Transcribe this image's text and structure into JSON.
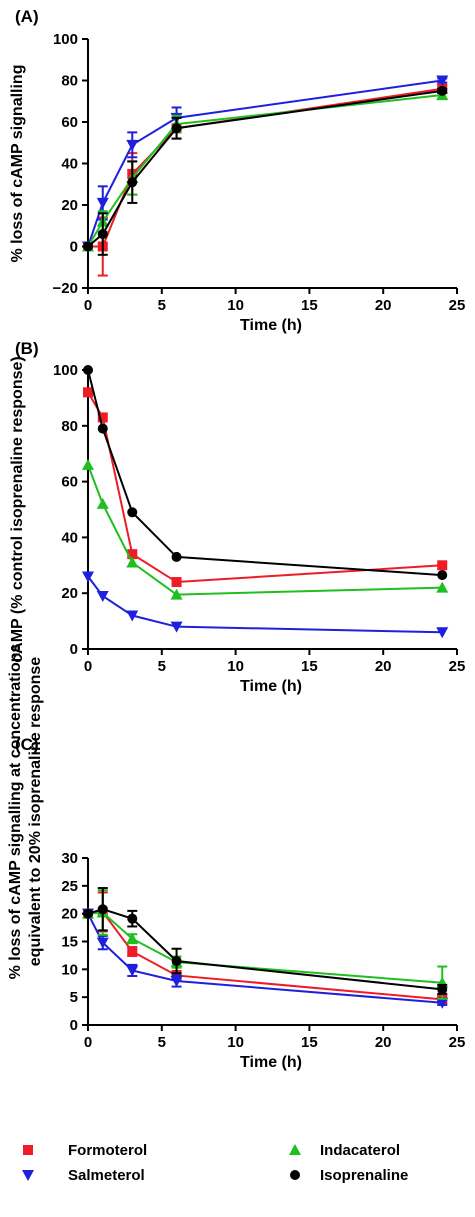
{
  "chart_data": [
    {
      "type": "line",
      "panel_label": "(A)",
      "xlabel": "Time (h)",
      "ylabel": "% loss of cAMP signalling",
      "xlim": [
        0,
        25
      ],
      "ylim": [
        -20,
        100
      ],
      "x_ticks": [
        "0",
        "5",
        "10",
        "15",
        "20",
        "25"
      ],
      "y_ticks": [
        "−20",
        "0",
        "20",
        "40",
        "60",
        "80",
        "100"
      ],
      "x": [
        0,
        1,
        3,
        6,
        24
      ],
      "series": [
        {
          "name": "Formoterol",
          "color": "#ee1c24",
          "marker": "square",
          "values": [
            0,
            0,
            35,
            57,
            76
          ],
          "err": [
            0,
            14,
            10,
            5,
            2
          ]
        },
        {
          "name": "Salmeterol",
          "color": "#1f1fdd",
          "marker": "triangle-down",
          "values": [
            0,
            21,
            49,
            62,
            80
          ],
          "err": [
            0,
            8,
            6,
            5,
            1
          ]
        },
        {
          "name": "Indacaterol",
          "color": "#1fbf1f",
          "marker": "triangle-up",
          "values": [
            0,
            12,
            33,
            59,
            73
          ],
          "err": [
            0,
            5,
            8,
            4,
            2
          ]
        },
        {
          "name": "Isoprenaline",
          "color": "#000000",
          "marker": "circle",
          "values": [
            0,
            6,
            31,
            57,
            75
          ],
          "err": [
            0,
            10,
            10,
            5,
            1
          ]
        }
      ]
    },
    {
      "type": "line",
      "panel_label": "(B)",
      "xlabel": "Time (h)",
      "ylabel": "cAMP (% control isoprenaline response)",
      "xlim": [
        0,
        25
      ],
      "ylim": [
        0,
        100
      ],
      "x_ticks": [
        "0",
        "5",
        "10",
        "15",
        "20",
        "25"
      ],
      "y_ticks": [
        "0",
        "20",
        "40",
        "60",
        "80",
        "100"
      ],
      "x": [
        0,
        1,
        3,
        6,
        24
      ],
      "series": [
        {
          "name": "Formoterol",
          "color": "#ee1c24",
          "marker": "square",
          "values": [
            92,
            83,
            34,
            24,
            30
          ]
        },
        {
          "name": "Salmeterol",
          "color": "#1f1fdd",
          "marker": "triangle-down",
          "values": [
            26,
            19,
            12,
            8,
            6
          ]
        },
        {
          "name": "Indacaterol",
          "color": "#1fbf1f",
          "marker": "triangle-up",
          "values": [
            66,
            52,
            31,
            19.5,
            22
          ]
        },
        {
          "name": "Isoprenaline",
          "color": "#000000",
          "marker": "circle",
          "values": [
            100,
            79,
            49,
            33,
            26.5
          ]
        }
      ]
    },
    {
      "type": "line",
      "panel_label": "(C)",
      "xlabel": "Time (h)",
      "ylabel": "% loss of cAMP signalling at concentrations",
      "ylabel2": "equivalent to 20% isoprenaline response",
      "xlim": [
        0,
        25
      ],
      "ylim": [
        0,
        30
      ],
      "x_ticks": [
        "0",
        "5",
        "10",
        "15",
        "20",
        "25"
      ],
      "y_ticks": [
        "0",
        "5",
        "10",
        "15",
        "20",
        "25",
        "30"
      ],
      "x": [
        0,
        1,
        3,
        6,
        24
      ],
      "series": [
        {
          "name": "Formoterol",
          "color": "#ee1c24",
          "marker": "square",
          "values": [
            20,
            20.3,
            13.2,
            8.9,
            4.6
          ],
          "err": [
            0,
            3.5,
            0.8,
            0.8,
            0.7
          ]
        },
        {
          "name": "Salmeterol",
          "color": "#1f1fdd",
          "marker": "triangle-down",
          "values": [
            20,
            14.8,
            9.8,
            7.9,
            4.0
          ],
          "err": [
            0,
            1.2,
            1.0,
            1.0,
            0.4
          ]
        },
        {
          "name": "Indacaterol",
          "color": "#1fbf1f",
          "marker": "triangle-up",
          "values": [
            20,
            20.2,
            15.5,
            11.3,
            7.6
          ],
          "err": [
            0,
            4.0,
            0.8,
            1.0,
            2.9
          ]
        },
        {
          "name": "Isoprenaline",
          "color": "#000000",
          "marker": "circle",
          "values": [
            20,
            20.8,
            19.1,
            11.5,
            6.4
          ],
          "err": [
            0,
            3.8,
            1.4,
            2.2,
            0.8
          ]
        }
      ]
    }
  ],
  "legend": [
    {
      "name": "Formoterol",
      "color": "#ee1c24",
      "marker": "square"
    },
    {
      "name": "Indacaterol",
      "color": "#1fbf1f",
      "marker": "triangle-up"
    },
    {
      "name": "Salmeterol",
      "color": "#1f1fdd",
      "marker": "triangle-down"
    },
    {
      "name": "Isoprenaline",
      "color": "#000000",
      "marker": "circle"
    }
  ]
}
